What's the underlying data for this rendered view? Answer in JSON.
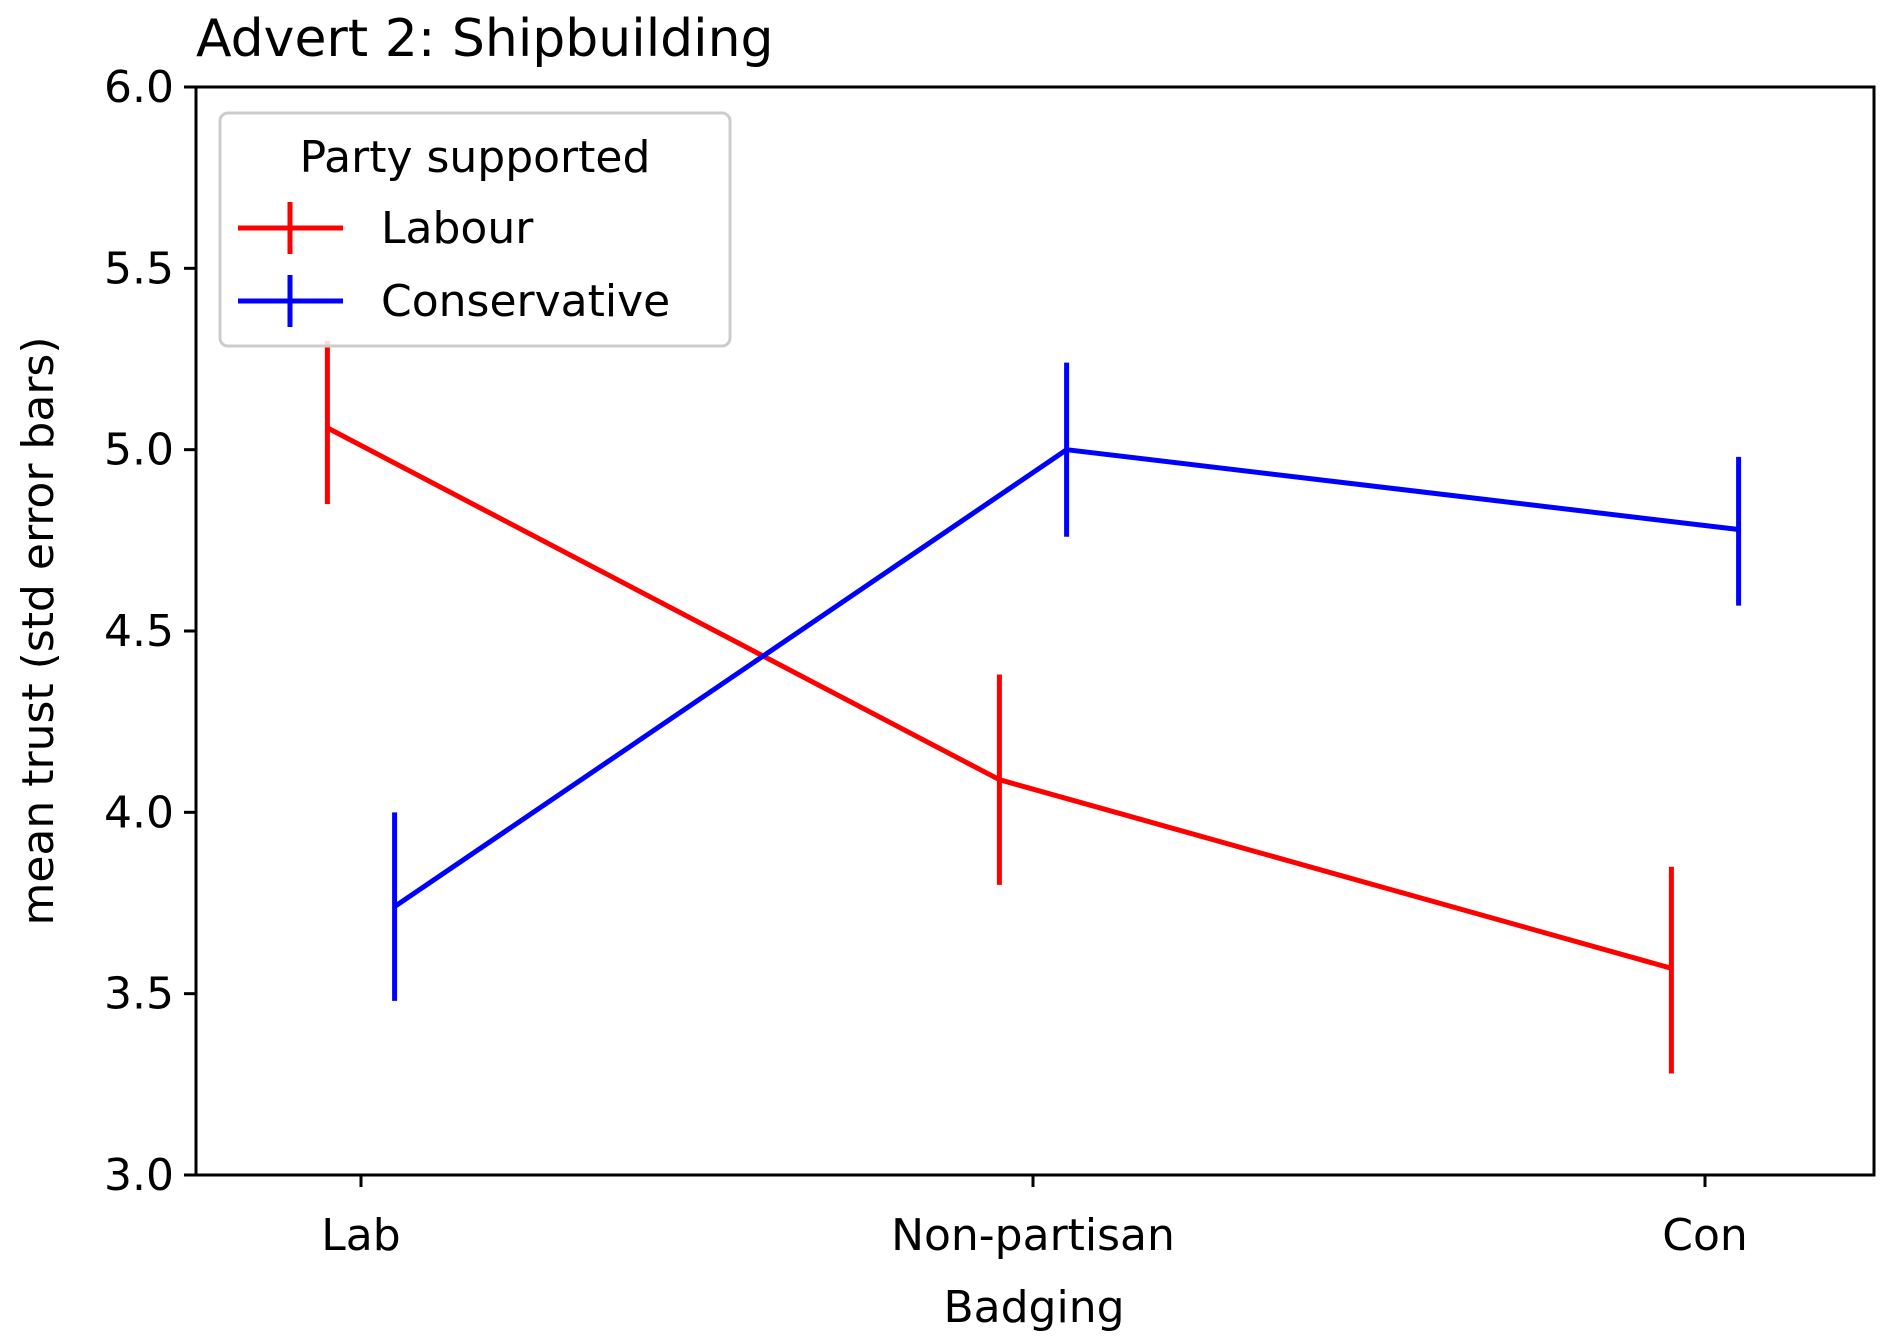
{
  "chart_data": {
    "type": "line",
    "title": "Advert 2: Shipbuilding",
    "xlabel": "Badging",
    "ylabel": "mean trust (std error bars)",
    "categories": [
      "Lab",
      "Non-partisan",
      "Con"
    ],
    "ylim": [
      3.0,
      6.0
    ],
    "yticks": [
      "3.0",
      "3.5",
      "4.0",
      "4.5",
      "5.0",
      "5.5",
      "6.0"
    ],
    "grid": false,
    "legend": {
      "title": "Party supported",
      "placement": "top-left"
    },
    "series": [
      {
        "name": "Labour",
        "color": "#ff0000",
        "x_offset": -0.05,
        "values": [
          5.06,
          4.09,
          3.57
        ],
        "err_low": [
          4.85,
          3.8,
          3.28
        ],
        "err_high": [
          5.3,
          4.38,
          3.85
        ]
      },
      {
        "name": "Conservative",
        "color": "#0000ff",
        "x_offset": 0.05,
        "values": [
          3.74,
          5.0,
          4.78
        ],
        "err_low": [
          3.48,
          4.76,
          4.57
        ],
        "err_high": [
          4.0,
          5.24,
          4.98
        ]
      }
    ]
  }
}
